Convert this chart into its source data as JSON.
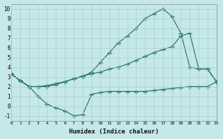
{
  "xlabel": "Humidex (Indice chaleur)",
  "background_color": "#c5e8e8",
  "grid_color": "#b0cccc",
  "line_color": "#1a6b6b",
  "xlim": [
    0,
    23
  ],
  "ylim": [
    -1.5,
    10.5
  ],
  "xticks": [
    0,
    1,
    2,
    3,
    4,
    5,
    6,
    7,
    8,
    9,
    10,
    11,
    12,
    13,
    14,
    15,
    16,
    17,
    18,
    19,
    20,
    21,
    22,
    23
  ],
  "yticks": [
    -1,
    0,
    1,
    2,
    3,
    4,
    5,
    6,
    7,
    8,
    9,
    10
  ],
  "line1_x": [
    0,
    1,
    2,
    3,
    4,
    5,
    6,
    7,
    8,
    9,
    10,
    11,
    12,
    13,
    14,
    15,
    16,
    17,
    18,
    19,
    20,
    21,
    22,
    23
  ],
  "line1_y": [
    3.3,
    2.6,
    2.0,
    2.0,
    2.0,
    2.2,
    2.5,
    2.8,
    3.0,
    3.5,
    4.5,
    5.5,
    6.5,
    7.2,
    8.0,
    9.0,
    9.5,
    10.0,
    9.2,
    7.5,
    4.0,
    3.8,
    3.8,
    2.5
  ],
  "line2_x": [
    0,
    1,
    2,
    3,
    4,
    5,
    6,
    7,
    8,
    9,
    10,
    11,
    12,
    13,
    14,
    15,
    16,
    17,
    18,
    19,
    20,
    21,
    22,
    23
  ],
  "line2_y": [
    3.3,
    2.6,
    2.0,
    2.0,
    2.1,
    2.3,
    2.5,
    2.8,
    3.1,
    3.3,
    3.5,
    3.8,
    4.0,
    4.3,
    4.7,
    5.1,
    5.5,
    5.8,
    6.1,
    7.2,
    7.5,
    3.8,
    3.8,
    2.5
  ],
  "line3_x": [
    0,
    1,
    2,
    3,
    4,
    5,
    6,
    7,
    8,
    9,
    10,
    11,
    12,
    13,
    14,
    15,
    16,
    17,
    18,
    19,
    20,
    21,
    22,
    23
  ],
  "line3_y": [
    3.3,
    2.6,
    2.0,
    1.0,
    0.2,
    -0.2,
    -0.5,
    -1.0,
    -0.9,
    1.2,
    1.4,
    1.5,
    1.5,
    1.5,
    1.5,
    1.5,
    1.6,
    1.7,
    1.8,
    1.9,
    2.0,
    2.0,
    2.0,
    2.5
  ]
}
